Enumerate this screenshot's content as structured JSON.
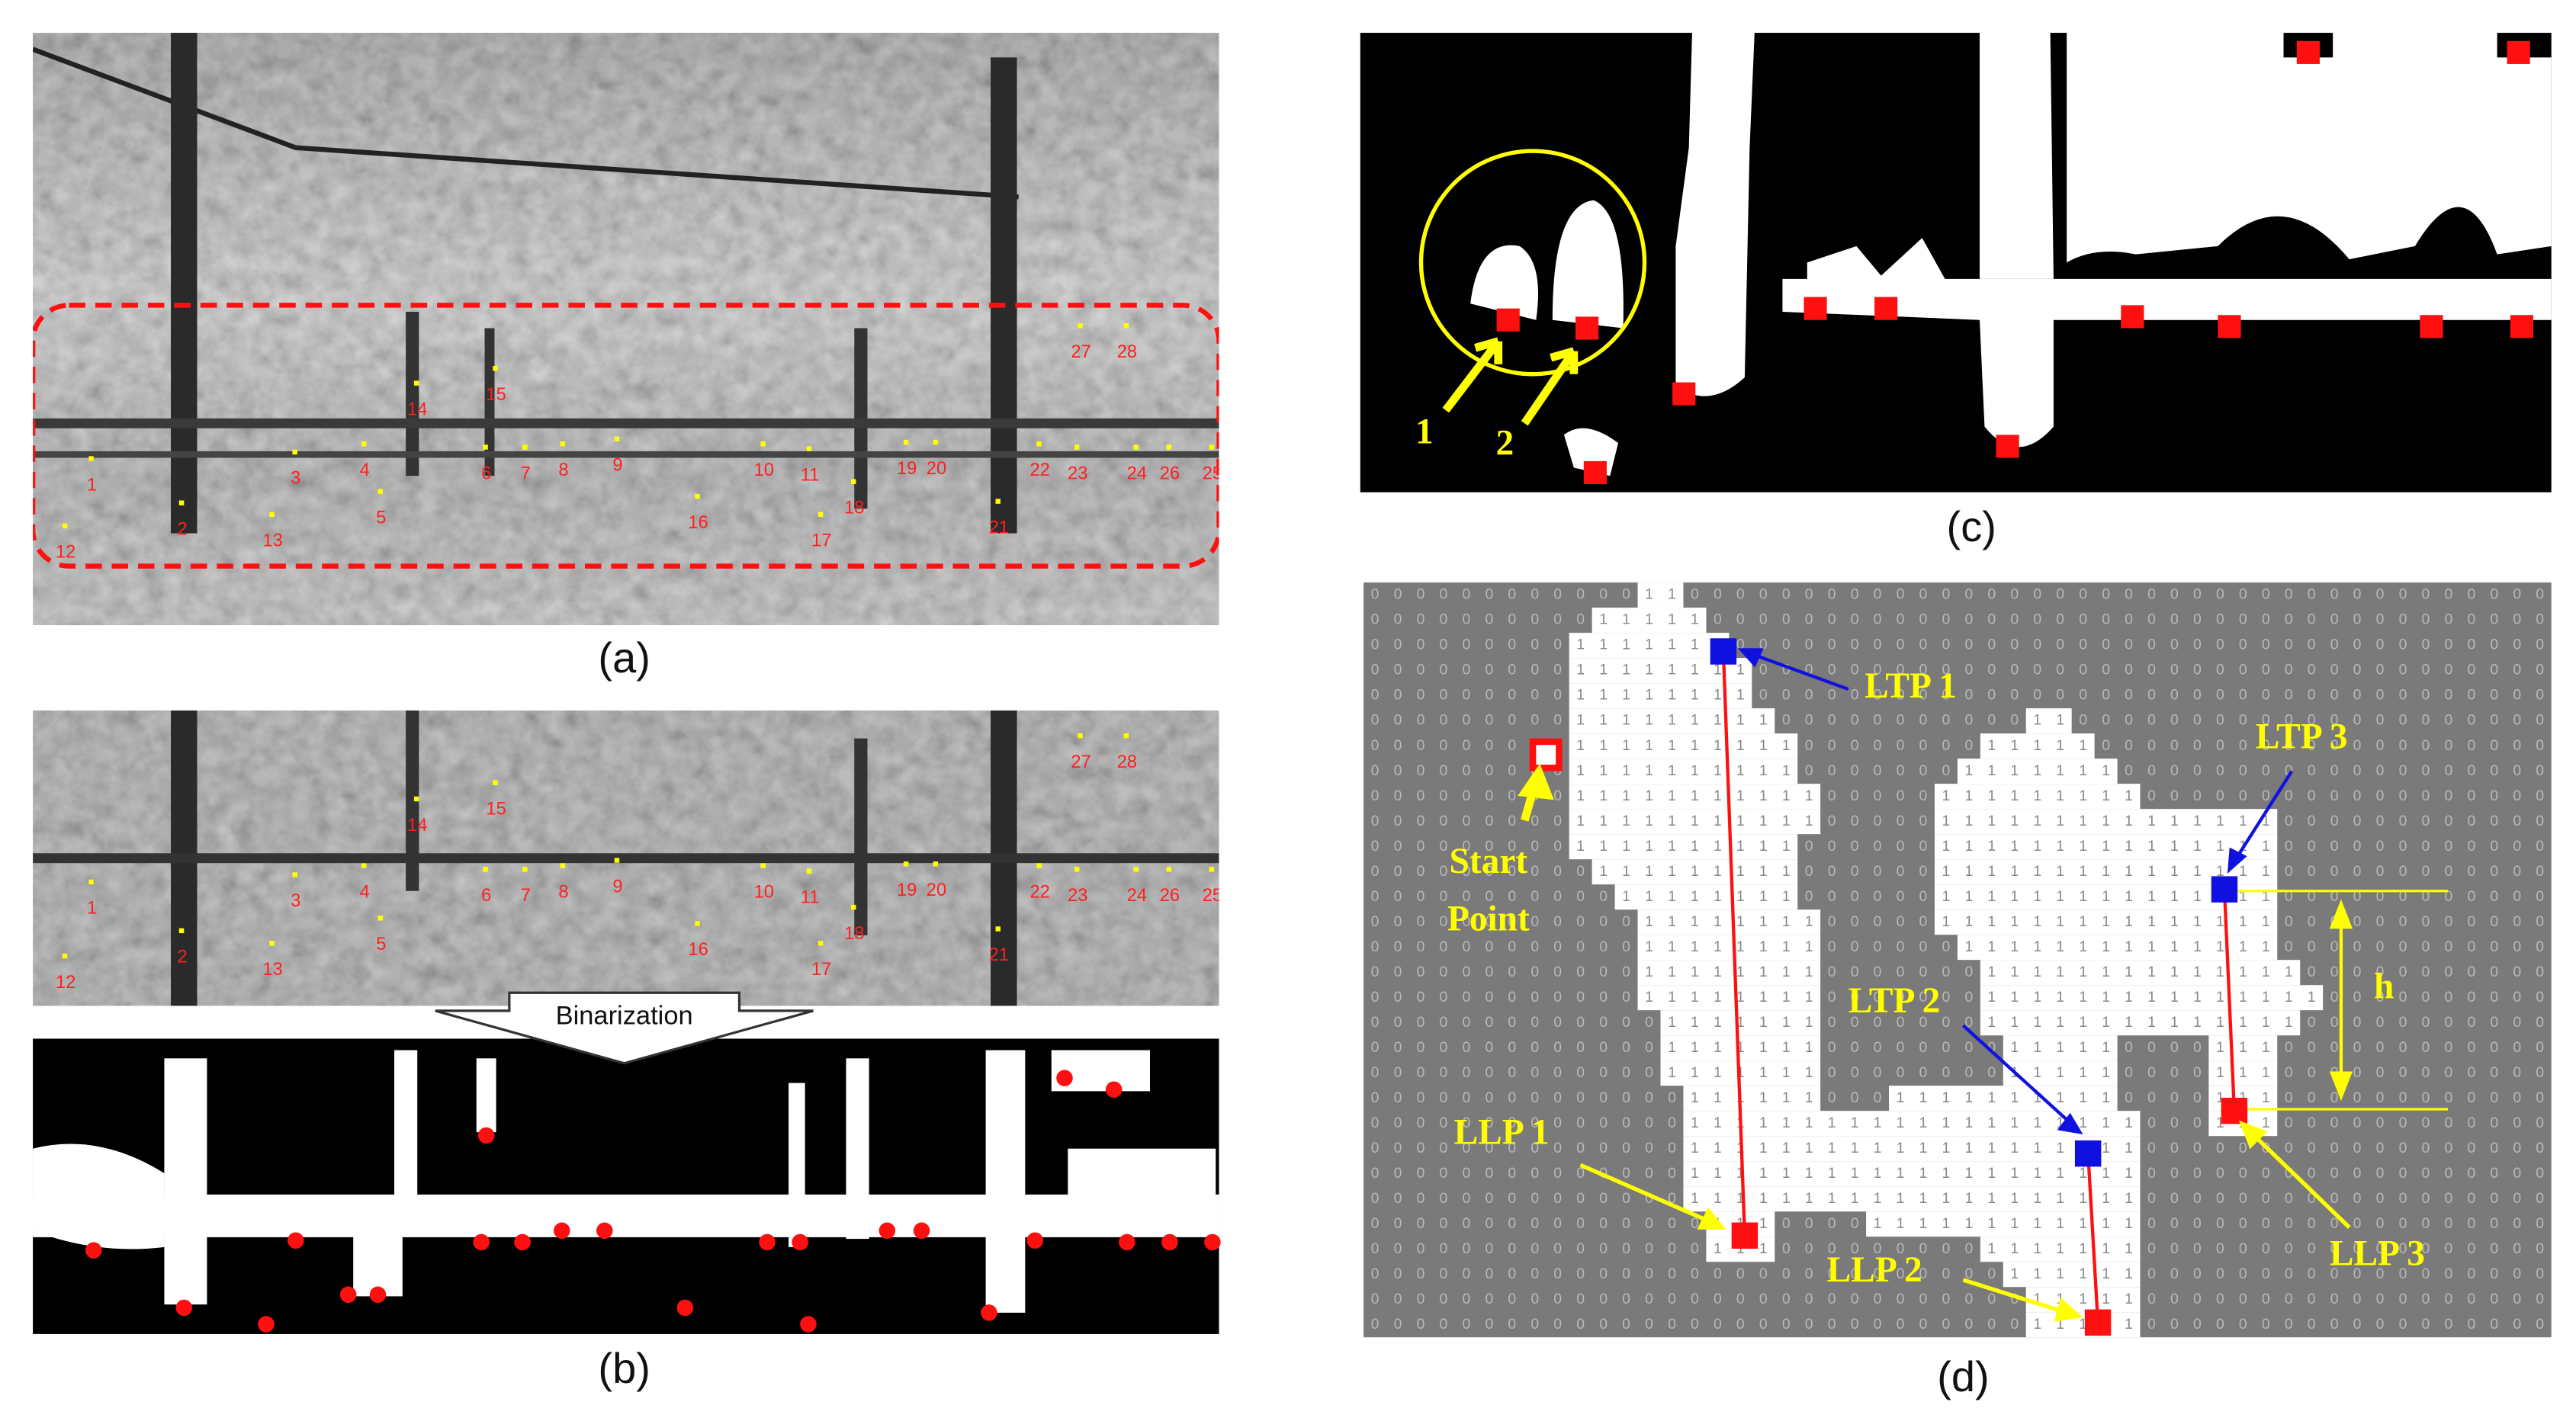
{
  "panels": {
    "a": {
      "caption": "(a)",
      "labels": [
        "1",
        "2",
        "3",
        "4",
        "5",
        "6",
        "7",
        "8",
        "9",
        "10",
        "11",
        "12",
        "13",
        "14",
        "15",
        "16",
        "17",
        "18",
        "19",
        "20",
        "21",
        "22",
        "23",
        "24",
        "25",
        "26",
        "27",
        "28"
      ]
    },
    "b": {
      "caption": "(b)",
      "arrow_label": "Binarization"
    },
    "c": {
      "caption": "(c)",
      "markers": [
        "1",
        "2"
      ]
    },
    "d": {
      "caption": "(d)",
      "digits": [
        "0",
        "1"
      ],
      "labels": {
        "ltp1": "LTP 1",
        "ltp2": "LTP 2",
        "ltp3": "LTP 3",
        "llp1": "LLP 1",
        "llp2": "LLP 2",
        "llp3": "LLP 3",
        "start": "Start",
        "point": "Point",
        "h": "h"
      }
    }
  }
}
